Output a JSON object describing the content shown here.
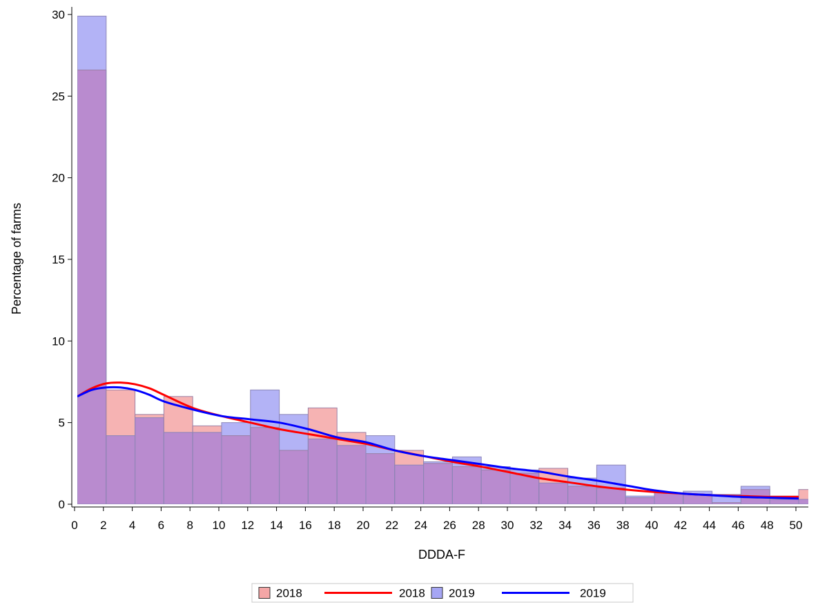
{
  "chart_data": {
    "type": "bar",
    "subtype": "overlaid histogram with density curves",
    "xlabel": "DDDA-F",
    "ylabel": "Percentage of farms",
    "xlim": [
      0,
      50
    ],
    "ylim": [
      0,
      30
    ],
    "x_ticks": [
      0,
      2,
      4,
      6,
      8,
      10,
      12,
      14,
      16,
      18,
      20,
      22,
      24,
      26,
      28,
      30,
      32,
      34,
      36,
      38,
      40,
      42,
      44,
      46,
      48,
      50
    ],
    "y_ticks": [
      0,
      5,
      10,
      15,
      20,
      25,
      30
    ],
    "bin_width": 2,
    "bin_starts": [
      0,
      2,
      4,
      6,
      8,
      10,
      12,
      14,
      16,
      18,
      20,
      22,
      24,
      26,
      28,
      30,
      32,
      34,
      36,
      38,
      40,
      42,
      44,
      46,
      48,
      50
    ],
    "grid": false,
    "legend_position": "bottom",
    "series": [
      {
        "name": "2018",
        "kind": "histogram",
        "color": "#f4a6a6",
        "values": [
          26.6,
          7.0,
          5.5,
          6.6,
          4.8,
          4.2,
          4.7,
          3.3,
          5.9,
          4.4,
          3.1,
          3.3,
          2.5,
          2.3,
          2.1,
          1.9,
          2.2,
          1.1,
          1.0,
          0.4,
          0.7,
          0.6,
          0.1,
          0.9,
          0.5,
          0.9
        ]
      },
      {
        "name": "2018",
        "kind": "density",
        "color": "#ff0000",
        "x": [
          0,
          1,
          2,
          3,
          4,
          5,
          6,
          8,
          10,
          12,
          14,
          16,
          18,
          20,
          22,
          24,
          26,
          28,
          30,
          32,
          34,
          36,
          38,
          40,
          42,
          44,
          46,
          48,
          50
        ],
        "y": [
          6.6,
          7.1,
          7.4,
          7.45,
          7.35,
          7.1,
          6.7,
          5.9,
          5.4,
          5.0,
          4.6,
          4.3,
          4.0,
          3.7,
          3.3,
          2.95,
          2.6,
          2.3,
          1.95,
          1.6,
          1.35,
          1.1,
          0.9,
          0.75,
          0.65,
          0.55,
          0.5,
          0.45,
          0.45
        ]
      },
      {
        "name": "2019",
        "kind": "histogram",
        "color": "#a6a6f4",
        "values": [
          29.9,
          4.2,
          5.3,
          4.4,
          4.4,
          5.0,
          7.0,
          5.5,
          4.0,
          3.6,
          4.2,
          2.4,
          2.6,
          2.9,
          2.3,
          2.1,
          1.3,
          1.6,
          2.4,
          0.5,
          0.7,
          0.8,
          0.6,
          1.1,
          0.3,
          0.3
        ]
      },
      {
        "name": "2019",
        "kind": "density",
        "color": "#0000ff",
        "x": [
          0,
          1,
          2,
          3,
          4,
          5,
          6,
          8,
          10,
          12,
          14,
          16,
          18,
          20,
          22,
          24,
          26,
          28,
          30,
          32,
          34,
          36,
          38,
          40,
          42,
          44,
          46,
          48,
          50
        ],
        "y": [
          6.6,
          7.0,
          7.15,
          7.15,
          7.0,
          6.7,
          6.3,
          5.8,
          5.4,
          5.2,
          5.0,
          4.6,
          4.1,
          3.8,
          3.3,
          2.95,
          2.7,
          2.45,
          2.2,
          2.0,
          1.7,
          1.45,
          1.15,
          0.85,
          0.65,
          0.55,
          0.45,
          0.4,
          0.35
        ]
      }
    ],
    "overlap_color": "#b98bcf",
    "legend": [
      {
        "label": "2018",
        "kind": "box",
        "color": "#f4a6a6"
      },
      {
        "label": "2018",
        "kind": "line",
        "color": "#ff0000"
      },
      {
        "label": "2019",
        "kind": "box",
        "color": "#a6a6f4"
      },
      {
        "label": "2019",
        "kind": "line",
        "color": "#0000ff"
      }
    ]
  }
}
